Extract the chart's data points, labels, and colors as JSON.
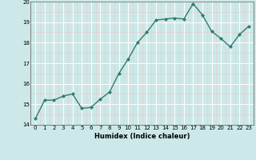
{
  "x": [
    0,
    1,
    2,
    3,
    4,
    5,
    6,
    7,
    8,
    9,
    10,
    11,
    12,
    13,
    14,
    15,
    16,
    17,
    18,
    19,
    20,
    21,
    22,
    23
  ],
  "y": [
    14.3,
    15.2,
    15.2,
    15.4,
    15.5,
    14.8,
    14.85,
    15.25,
    15.6,
    16.5,
    17.2,
    18.0,
    18.5,
    19.1,
    19.15,
    19.2,
    19.15,
    19.9,
    19.35,
    18.55,
    18.2,
    17.8,
    18.4,
    18.8
  ],
  "xlabel": "Humidex (Indice chaleur)",
  "ylim": [
    14,
    20
  ],
  "xlim": [
    -0.5,
    23.5
  ],
  "yticks": [
    14,
    15,
    16,
    17,
    18,
    19,
    20
  ],
  "xticks": [
    0,
    1,
    2,
    3,
    4,
    5,
    6,
    7,
    8,
    9,
    10,
    11,
    12,
    13,
    14,
    15,
    16,
    17,
    18,
    19,
    20,
    21,
    22,
    23
  ],
  "line_color": "#2d7d6f",
  "bg_color": "#cce8e8",
  "grid_color": "#ffffff",
  "grid_minor_color": "#e8c8c8",
  "marker": "D",
  "markersize": 2,
  "linewidth": 1.0,
  "tick_fontsize": 5,
  "xlabel_fontsize": 6
}
